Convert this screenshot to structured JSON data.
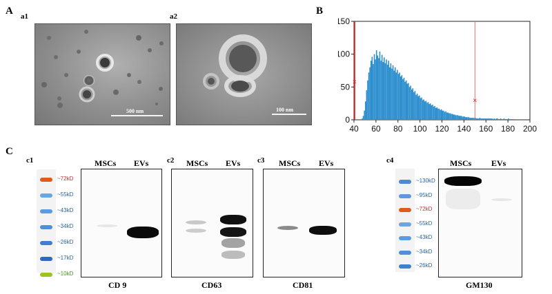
{
  "panels": {
    "A": "A",
    "B": "B",
    "C": "C"
  },
  "em": {
    "a1": {
      "label": "a1",
      "scale": "500 nm"
    },
    "a2": {
      "label": "a2",
      "scale": "100 nm"
    }
  },
  "chart_data": {
    "type": "bar",
    "title": "",
    "xlabel": "",
    "ylabel": "",
    "xlim": [
      40,
      200
    ],
    "ylim": [
      0,
      150
    ],
    "xticks": [
      40,
      60,
      80,
      100,
      120,
      140,
      160,
      180,
      200
    ],
    "yticks": [
      0,
      50,
      100,
      150
    ],
    "bin_width": 1,
    "color": "#2e8fcf",
    "markers": [
      {
        "x": 40.5,
        "y": 58,
        "symbol": "×"
      },
      {
        "x": 150,
        "y": 30,
        "symbol": "×"
      }
    ],
    "vlines": [
      {
        "x": 40.5,
        "color": "#c62828"
      },
      {
        "x": 150,
        "color": "#e57373"
      }
    ],
    "x": [
      47,
      48,
      49,
      50,
      51,
      52,
      53,
      54,
      55,
      56,
      57,
      58,
      59,
      60,
      61,
      62,
      63,
      64,
      65,
      66,
      67,
      68,
      69,
      70,
      71,
      72,
      73,
      74,
      75,
      76,
      77,
      78,
      79,
      80,
      81,
      82,
      83,
      84,
      85,
      86,
      87,
      88,
      89,
      90,
      91,
      92,
      93,
      94,
      95,
      96,
      97,
      98,
      99,
      100,
      101,
      102,
      103,
      104,
      105,
      106,
      107,
      108,
      109,
      110,
      111,
      112,
      113,
      114,
      115,
      116,
      117,
      118,
      119,
      120,
      121,
      122,
      123,
      124,
      125,
      126,
      127,
      128,
      129,
      130,
      131,
      132,
      133,
      134,
      135,
      136,
      137,
      138,
      139,
      140,
      141,
      142,
      143,
      144,
      145,
      146,
      147,
      148,
      149,
      150,
      151,
      152,
      153,
      154,
      155,
      156,
      157,
      158,
      159,
      160,
      161,
      162,
      163,
      164,
      165,
      166,
      167,
      168,
      169,
      170,
      171,
      172,
      173,
      174,
      175,
      176,
      177,
      178,
      179,
      180,
      181,
      182,
      183,
      184,
      185
    ],
    "values": [
      2,
      6,
      14,
      28,
      45,
      60,
      72,
      80,
      90,
      96,
      85,
      100,
      92,
      106,
      98,
      94,
      104,
      90,
      99,
      88,
      95,
      86,
      92,
      84,
      90,
      80,
      86,
      78,
      83,
      75,
      80,
      72,
      76,
      70,
      72,
      66,
      68,
      62,
      64,
      58,
      60,
      55,
      56,
      50,
      52,
      46,
      48,
      42,
      44,
      38,
      40,
      36,
      37,
      33,
      34,
      30,
      31,
      28,
      29,
      26,
      27,
      24,
      25,
      22,
      23,
      20,
      21,
      18,
      19,
      17,
      17,
      15,
      16,
      14,
      14,
      12,
      13,
      11,
      11,
      10,
      10,
      9,
      9,
      8,
      8,
      7,
      7,
      7,
      6,
      6,
      6,
      5,
      5,
      5,
      4,
      4,
      4,
      4,
      3,
      3,
      3,
      3,
      3,
      3,
      2,
      2,
      2,
      3,
      2,
      2,
      2,
      2,
      2,
      2,
      2,
      2,
      2,
      2,
      2,
      1,
      2,
      1,
      2,
      2,
      1,
      1,
      2,
      1,
      1,
      2,
      1,
      1,
      1,
      2,
      1,
      1,
      1,
      1,
      1
    ]
  },
  "blots": {
    "c1": {
      "label": "c1",
      "caption": "CD 9"
    },
    "c2": {
      "label": "c2",
      "caption": "CD63"
    },
    "c3": {
      "label": "c3",
      "caption": "CD81"
    },
    "c4": {
      "label": "c4",
      "caption": "GM130"
    },
    "col_msc": "MSCs",
    "col_ev": "EVs"
  },
  "ladder1": {
    "rungs": [
      {
        "label": "~72kD",
        "color": "#e05a1c",
        "text_color": "#d32f2f"
      },
      {
        "label": "~55kD",
        "color": "#6aa7e0",
        "text_color": "#2a62a8"
      },
      {
        "label": "~43kD",
        "color": "#5b9be0",
        "text_color": "#2a62a8"
      },
      {
        "label": "~34kD",
        "color": "#4f8fd9",
        "text_color": "#2a62a8"
      },
      {
        "label": "~26kD",
        "color": "#3f7fd0",
        "text_color": "#2a62a8"
      },
      {
        "label": "~17kD",
        "color": "#2f68bf",
        "text_color": "#2a62a8"
      },
      {
        "label": "~10kD",
        "color": "#9bc21f",
        "text_color": "#3a9a1c"
      }
    ]
  },
  "ladder2": {
    "rungs": [
      {
        "label": "~130kD",
        "color": "#4d8ad6",
        "text_color": "#2a62a8"
      },
      {
        "label": "~95kD",
        "color": "#5d98dc",
        "text_color": "#2a62a8"
      },
      {
        "label": "~72kD",
        "color": "#e05a1c",
        "text_color": "#d32f2f"
      },
      {
        "label": "~55kD",
        "color": "#6aa7e0",
        "text_color": "#2a62a8"
      },
      {
        "label": "~43kD",
        "color": "#5b9be0",
        "text_color": "#2a62a8"
      },
      {
        "label": "~34kD",
        "color": "#4f8fd9",
        "text_color": "#2a62a8"
      },
      {
        "label": "~26kD",
        "color": "#3f7fd0",
        "text_color": "#2a62a8"
      }
    ]
  }
}
